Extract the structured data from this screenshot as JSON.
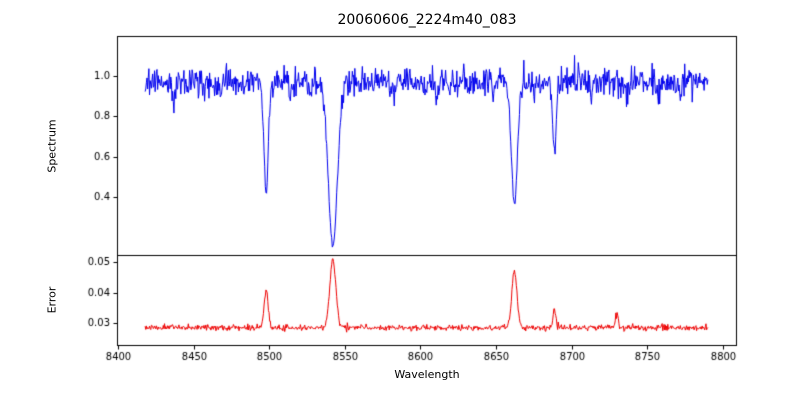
{
  "title": "20060606_2224m40_083",
  "xlabel": "Wavelength",
  "labels": {
    "spectrum_ylabel": "Spectrum",
    "error_ylabel": "Error"
  },
  "colors": {
    "spectrum_line": "#0000ee",
    "error_line": "#ee0000",
    "axis": "#000000",
    "background": "#ffffff"
  },
  "chart_data": [
    {
      "type": "line",
      "series_name": "spectrum",
      "title": "20060606_2224m40_083",
      "xlabel": "Wavelength",
      "ylabel": "Spectrum",
      "color": "#0000ee",
      "grid": false,
      "legend": null,
      "xlim": [
        8399.4,
        8808.6
      ],
      "ylim": [
        0.11,
        1.2
      ],
      "xticks": [
        8400,
        8450,
        8500,
        8550,
        8600,
        8650,
        8700,
        8750,
        8800
      ],
      "xtick_labels": [
        "8400",
        "8450",
        "8500",
        "8550",
        "8600",
        "8650",
        "8700",
        "8750",
        "8800"
      ],
      "yticks": [
        0.4,
        0.6,
        0.8,
        1.0
      ],
      "ytick_labels": [
        "0.4",
        "0.6",
        "0.8",
        "1.0"
      ],
      "x_start": 8418,
      "x_end": 8790,
      "n_points": 900,
      "continuum_level": 0.97,
      "noise_sigma": 0.036,
      "absorption_lines": [
        {
          "center": 8498.0,
          "depth": 0.56,
          "sigma": 1.4
        },
        {
          "center": 8542.1,
          "depth": 0.815,
          "sigma": 3.0
        },
        {
          "center": 8662.1,
          "depth": 0.615,
          "sigma": 2.0
        },
        {
          "center": 8688.6,
          "depth": 0.345,
          "sigma": 1.1
        },
        {
          "center": 8437.0,
          "depth": 0.07,
          "sigma": 0.6
        },
        {
          "center": 8468.0,
          "depth": 0.1,
          "sigma": 0.6
        },
        {
          "center": 8514.0,
          "depth": 0.09,
          "sigma": 0.6
        },
        {
          "center": 8527.0,
          "depth": 0.07,
          "sigma": 0.6
        },
        {
          "center": 8583.0,
          "depth": 0.1,
          "sigma": 0.6
        },
        {
          "center": 8611.0,
          "depth": 0.08,
          "sigma": 0.6
        },
        {
          "center": 8648.0,
          "depth": 0.09,
          "sigma": 0.6
        },
        {
          "center": 8675.0,
          "depth": 0.07,
          "sigma": 0.6
        },
        {
          "center": 8713.0,
          "depth": 0.08,
          "sigma": 0.6
        },
        {
          "center": 8736.0,
          "depth": 0.07,
          "sigma": 0.6
        },
        {
          "center": 8757.0,
          "depth": 0.08,
          "sigma": 0.6
        },
        {
          "center": 8772.0,
          "depth": 0.07,
          "sigma": 0.6
        }
      ]
    },
    {
      "type": "line",
      "series_name": "error",
      "ylabel": "Error",
      "color": "#ee0000",
      "grid": false,
      "legend": null,
      "xlim": [
        8399.4,
        8808.6
      ],
      "ylim": [
        0.0228,
        0.0524
      ],
      "yticks": [
        0.03,
        0.04,
        0.05
      ],
      "ytick_labels": [
        "0.03",
        "0.04",
        "0.05"
      ],
      "x_start": 8418,
      "x_end": 8790,
      "n_points": 900,
      "baseline_level": 0.0285,
      "noise_sigma": 0.0005,
      "emission_peaks": [
        {
          "center": 8498.0,
          "height": 0.0125,
          "sigma": 1.3
        },
        {
          "center": 8542.1,
          "height": 0.0225,
          "sigma": 2.0
        },
        {
          "center": 8662.1,
          "height": 0.0185,
          "sigma": 1.7
        },
        {
          "center": 8688.6,
          "height": 0.006,
          "sigma": 1.0
        },
        {
          "center": 8730.0,
          "height": 0.0045,
          "sigma": 1.0
        }
      ]
    }
  ]
}
